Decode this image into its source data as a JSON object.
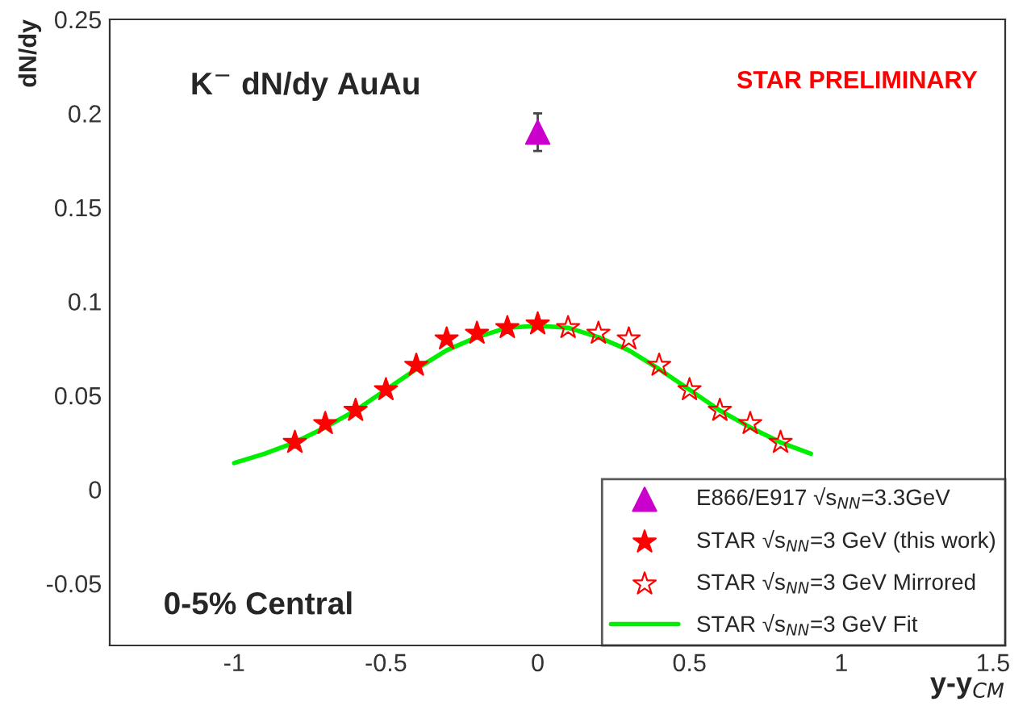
{
  "chart_data": {
    "type": "scatter",
    "xlabel": "y-y$_{CM}$",
    "ylabel": "dN/dy",
    "xlim": [
      -1.41,
      1.54
    ],
    "ylim": [
      -0.083,
      0.25
    ],
    "xticks": [
      -1,
      -0.5,
      0,
      0.5,
      1,
      1.5
    ],
    "yticks": [
      -0.05,
      0,
      0.05,
      0.1,
      0.15,
      0.2,
      0.25
    ],
    "grid": false,
    "legend": "bottom right",
    "annotations": [
      "K$^{−}$ dN/dy AuAu",
      "STAR PRELIMINARY",
      "0-5% Central"
    ],
    "series": [
      {
        "name": "E866/E917 √s$_{NN}$=3.3GeV",
        "marker": "triangle",
        "color": "#cc00cc",
        "x": [
          0
        ],
        "values": [
          0.19
        ],
        "errors": [
          0.01
        ]
      },
      {
        "name": "STAR √s$_{NN}$=3 GeV (this work)",
        "marker": "star",
        "color": "#ff0000",
        "x": [
          -0.8,
          -0.7,
          -0.6,
          -0.5,
          -0.4,
          -0.3,
          -0.2,
          -0.1,
          0
        ],
        "values": [
          0.025,
          0.035,
          0.042,
          0.053,
          0.066,
          0.08,
          0.083,
          0.086,
          0.088
        ]
      },
      {
        "name": "STAR √s$_{NN}$=3 GeV Mirrored",
        "marker": "star",
        "color": "#ff0000",
        "x": [
          0.1,
          0.2,
          0.3,
          0.4,
          0.5,
          0.6,
          0.7,
          0.8
        ],
        "values": [
          0.086,
          0.083,
          0.08,
          0.066,
          0.053,
          0.042,
          0.035,
          0.025
        ]
      },
      {
        "name": "STAR √s$_{NN}$=3 GeV Fit",
        "type": "line",
        "color": "#00ee00",
        "x": [
          -1,
          -0.9,
          -0.8,
          -0.7,
          -0.6,
          -0.5,
          -0.4,
          -0.3,
          -0.2,
          -0.1,
          0,
          0.1,
          0.2,
          0.3,
          0.4,
          0.5,
          0.6,
          0.7,
          0.8,
          0.9
        ],
        "values": [
          0.014,
          0.019,
          0.025,
          0.033,
          0.042,
          0.053,
          0.064,
          0.074,
          0.081,
          0.086,
          0.087,
          0.086,
          0.081,
          0.074,
          0.064,
          0.053,
          0.042,
          0.033,
          0.025,
          0.019
        ]
      }
    ]
  }
}
